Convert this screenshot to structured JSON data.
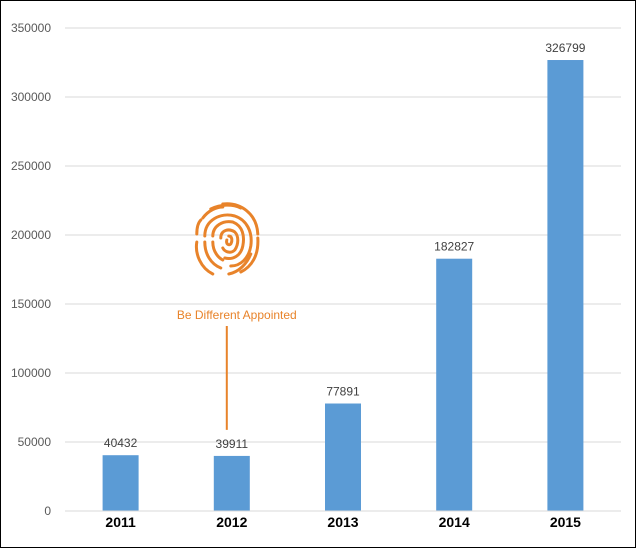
{
  "chart_data": {
    "type": "bar",
    "categories": [
      "2011",
      "2012",
      "2013",
      "2014",
      "2015"
    ],
    "values": [
      40432,
      39911,
      77891,
      182827,
      326799
    ],
    "data_labels": [
      "40432",
      "39911",
      "77891",
      "182827",
      "326799"
    ],
    "ylim": [
      0,
      350000
    ],
    "yticks": [
      0,
      50000,
      100000,
      150000,
      200000,
      250000,
      300000,
      350000
    ],
    "ytick_labels": [
      "0",
      "50000",
      "100000",
      "150000",
      "200000",
      "250000",
      "300000",
      "350000"
    ],
    "grid": true,
    "bar_color": "#5b9bd5",
    "annotation": {
      "text": "Be Different Appointed",
      "category": "2012",
      "color": "#e8832a",
      "icon": "fingerprint-icon"
    }
  }
}
